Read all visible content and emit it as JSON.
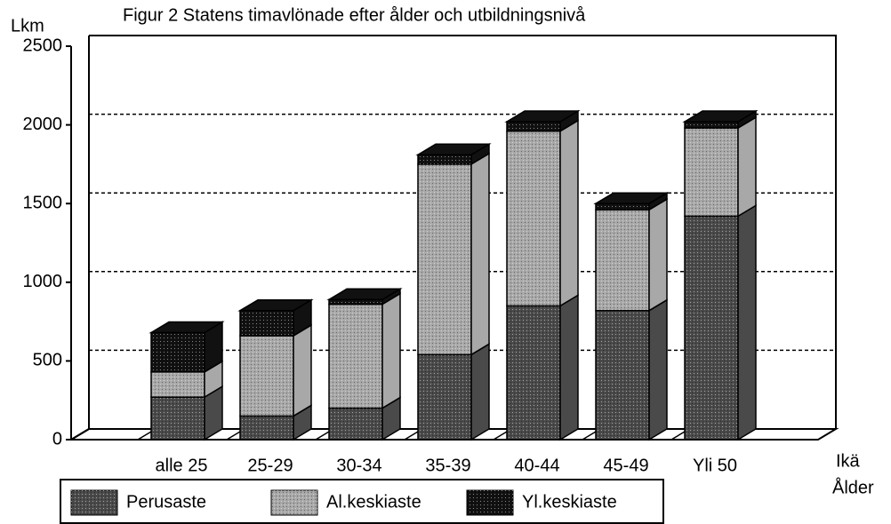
{
  "chart_data": {
    "type": "bar3d_stacked",
    "title": "Figur 2  Statens timavlönade efter ålder och utbildningsnivå",
    "y_label": "Lkm",
    "x_label": [
      "Ikä",
      "Ålder"
    ],
    "categories": [
      "alle 25",
      "25-29",
      "30-34",
      "35-39",
      "40-44",
      "45-49",
      "Yli 50"
    ],
    "series": [
      {
        "name": "Perusaste",
        "color": "#4a4a4a",
        "values": [
          270,
          150,
          200,
          540,
          850,
          820,
          1420
        ]
      },
      {
        "name": "Al.keskiaste",
        "color": "#a8a8a8",
        "values": [
          160,
          510,
          660,
          1210,
          1110,
          640,
          560
        ]
      },
      {
        "name": "Yl.keskiaste",
        "color": "#111111",
        "values": [
          250,
          160,
          30,
          60,
          60,
          40,
          40
        ]
      }
    ],
    "ylim": [
      0,
      2500
    ],
    "yticks": [
      0,
      500,
      1000,
      1500,
      2000,
      2500
    ],
    "grid": true
  }
}
